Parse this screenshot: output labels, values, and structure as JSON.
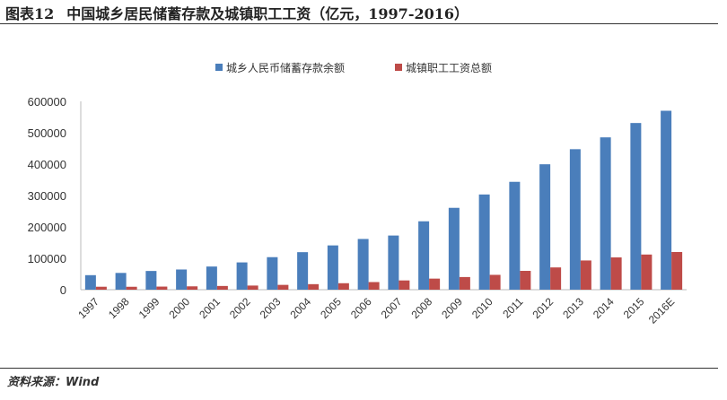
{
  "title": {
    "figure": "图表12",
    "text": "中国城乡居民储蓄存款及城镇职工工资（亿元，1997-2016）"
  },
  "source": "资料来源：Wind",
  "chart_data": {
    "type": "bar",
    "title": "中国城乡居民储蓄存款及城镇职工工资（亿元，1997-2016）",
    "xlabel": "",
    "ylabel": "",
    "ylim": [
      0,
      600000
    ],
    "yticks": [
      0,
      100000,
      200000,
      300000,
      400000,
      500000,
      600000
    ],
    "ytick_labels": [
      "0",
      "100000",
      "200000",
      "300000",
      "400000",
      "500000",
      "600000"
    ],
    "legend_position": "top",
    "categories": [
      "1997",
      "1998",
      "1999",
      "2000",
      "2001",
      "2002",
      "2003",
      "2004",
      "2005",
      "2006",
      "2007",
      "2008",
      "2009",
      "2010",
      "2011",
      "2012",
      "2013",
      "2014",
      "2015",
      "2016E"
    ],
    "series": [
      {
        "name": "城乡人民币储蓄存款余额",
        "color": "#4a7ebb",
        "values": [
          46280,
          53407,
          59622,
          64332,
          73762,
          86911,
          103617,
          119555,
          141051,
          161587,
          172534,
          217885,
          260772,
          303302,
          343636,
          399551,
          447602,
          485261,
          531000,
          570000
        ]
      },
      {
        "name": "城镇职工工资总额",
        "color": "#be4b48",
        "values": [
          9405,
          9296,
          9875,
          10656,
          11831,
          13161,
          15329,
          17615,
          20627,
          24262,
          29471,
          35289,
          40288,
          47270,
          59954,
          70914,
          93064,
          102817,
          112000,
          120000
        ]
      }
    ]
  }
}
